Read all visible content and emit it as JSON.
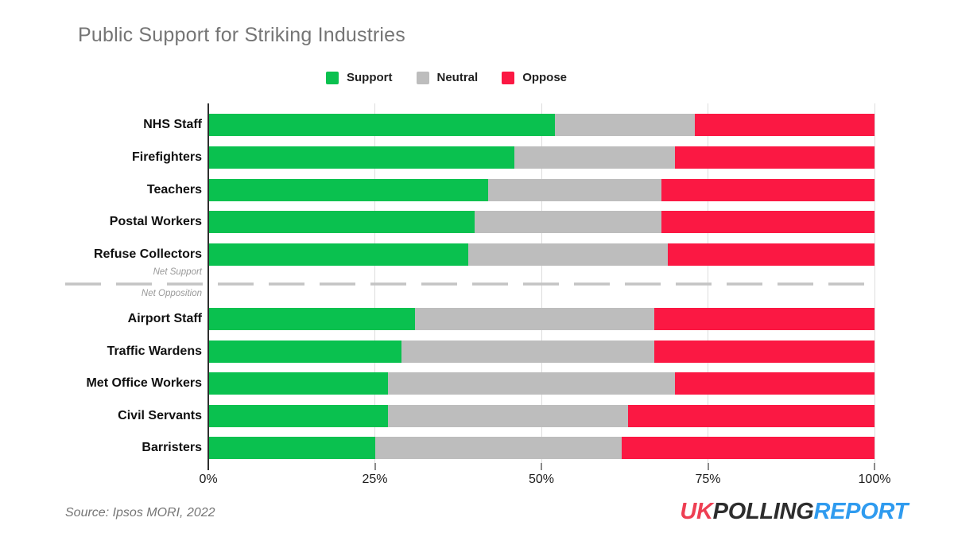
{
  "title": "Public Support for Striking Industries",
  "legend": {
    "position": "top",
    "items": [
      {
        "label": "Support",
        "color": "#0AC14F"
      },
      {
        "label": "Neutral",
        "color": "#BDBDBD"
      },
      {
        "label": "Oppose",
        "color": "#FB1843"
      }
    ]
  },
  "chart_data": {
    "type": "bar",
    "stacked": true,
    "orientation": "horizontal",
    "title": "Public Support for Striking Industries",
    "xlabel": "",
    "ylabel": "",
    "xlim": [
      0,
      100
    ],
    "x_ticks": [
      "0%",
      "25%",
      "50%",
      "75%",
      "100%"
    ],
    "x_tick_values": [
      0,
      25,
      50,
      75,
      100
    ],
    "grid": true,
    "categories": [
      "NHS Staff",
      "Firefighters",
      "Teachers",
      "Postal Workers",
      "Refuse Collectors",
      "Airport Staff",
      "Traffic Wardens",
      "Met Office Workers",
      "Civil Servants",
      "Barristers"
    ],
    "series": [
      {
        "name": "Support",
        "color": "#0AC14F",
        "values": [
          52,
          46,
          42,
          40,
          39,
          31,
          29,
          27,
          27,
          25
        ]
      },
      {
        "name": "Neutral",
        "color": "#BDBDBD",
        "values": [
          21,
          24,
          26,
          28,
          30,
          36,
          38,
          43,
          36,
          37
        ]
      },
      {
        "name": "Oppose",
        "color": "#FB1843",
        "values": [
          27,
          30,
          32,
          32,
          31,
          33,
          33,
          30,
          37,
          38
        ]
      }
    ],
    "groups": [
      {
        "label": "Net Support",
        "category_indexes": [
          0,
          1,
          2,
          3,
          4
        ]
      },
      {
        "label": "Net Opposition",
        "category_indexes": [
          5,
          6,
          7,
          8,
          9
        ]
      }
    ]
  },
  "divider": {
    "top_label": "Net Support",
    "bottom_label": "Net Opposition",
    "color": "#C4C4C4"
  },
  "source": "Source: Ipsos MORI, 2022",
  "logo": {
    "uk": "UK",
    "polling": "POLLING",
    "report": "REPORT",
    "uk_color": "#EE3F53",
    "polling_color": "#2D2D2D",
    "report_color": "#2F9BEF"
  }
}
